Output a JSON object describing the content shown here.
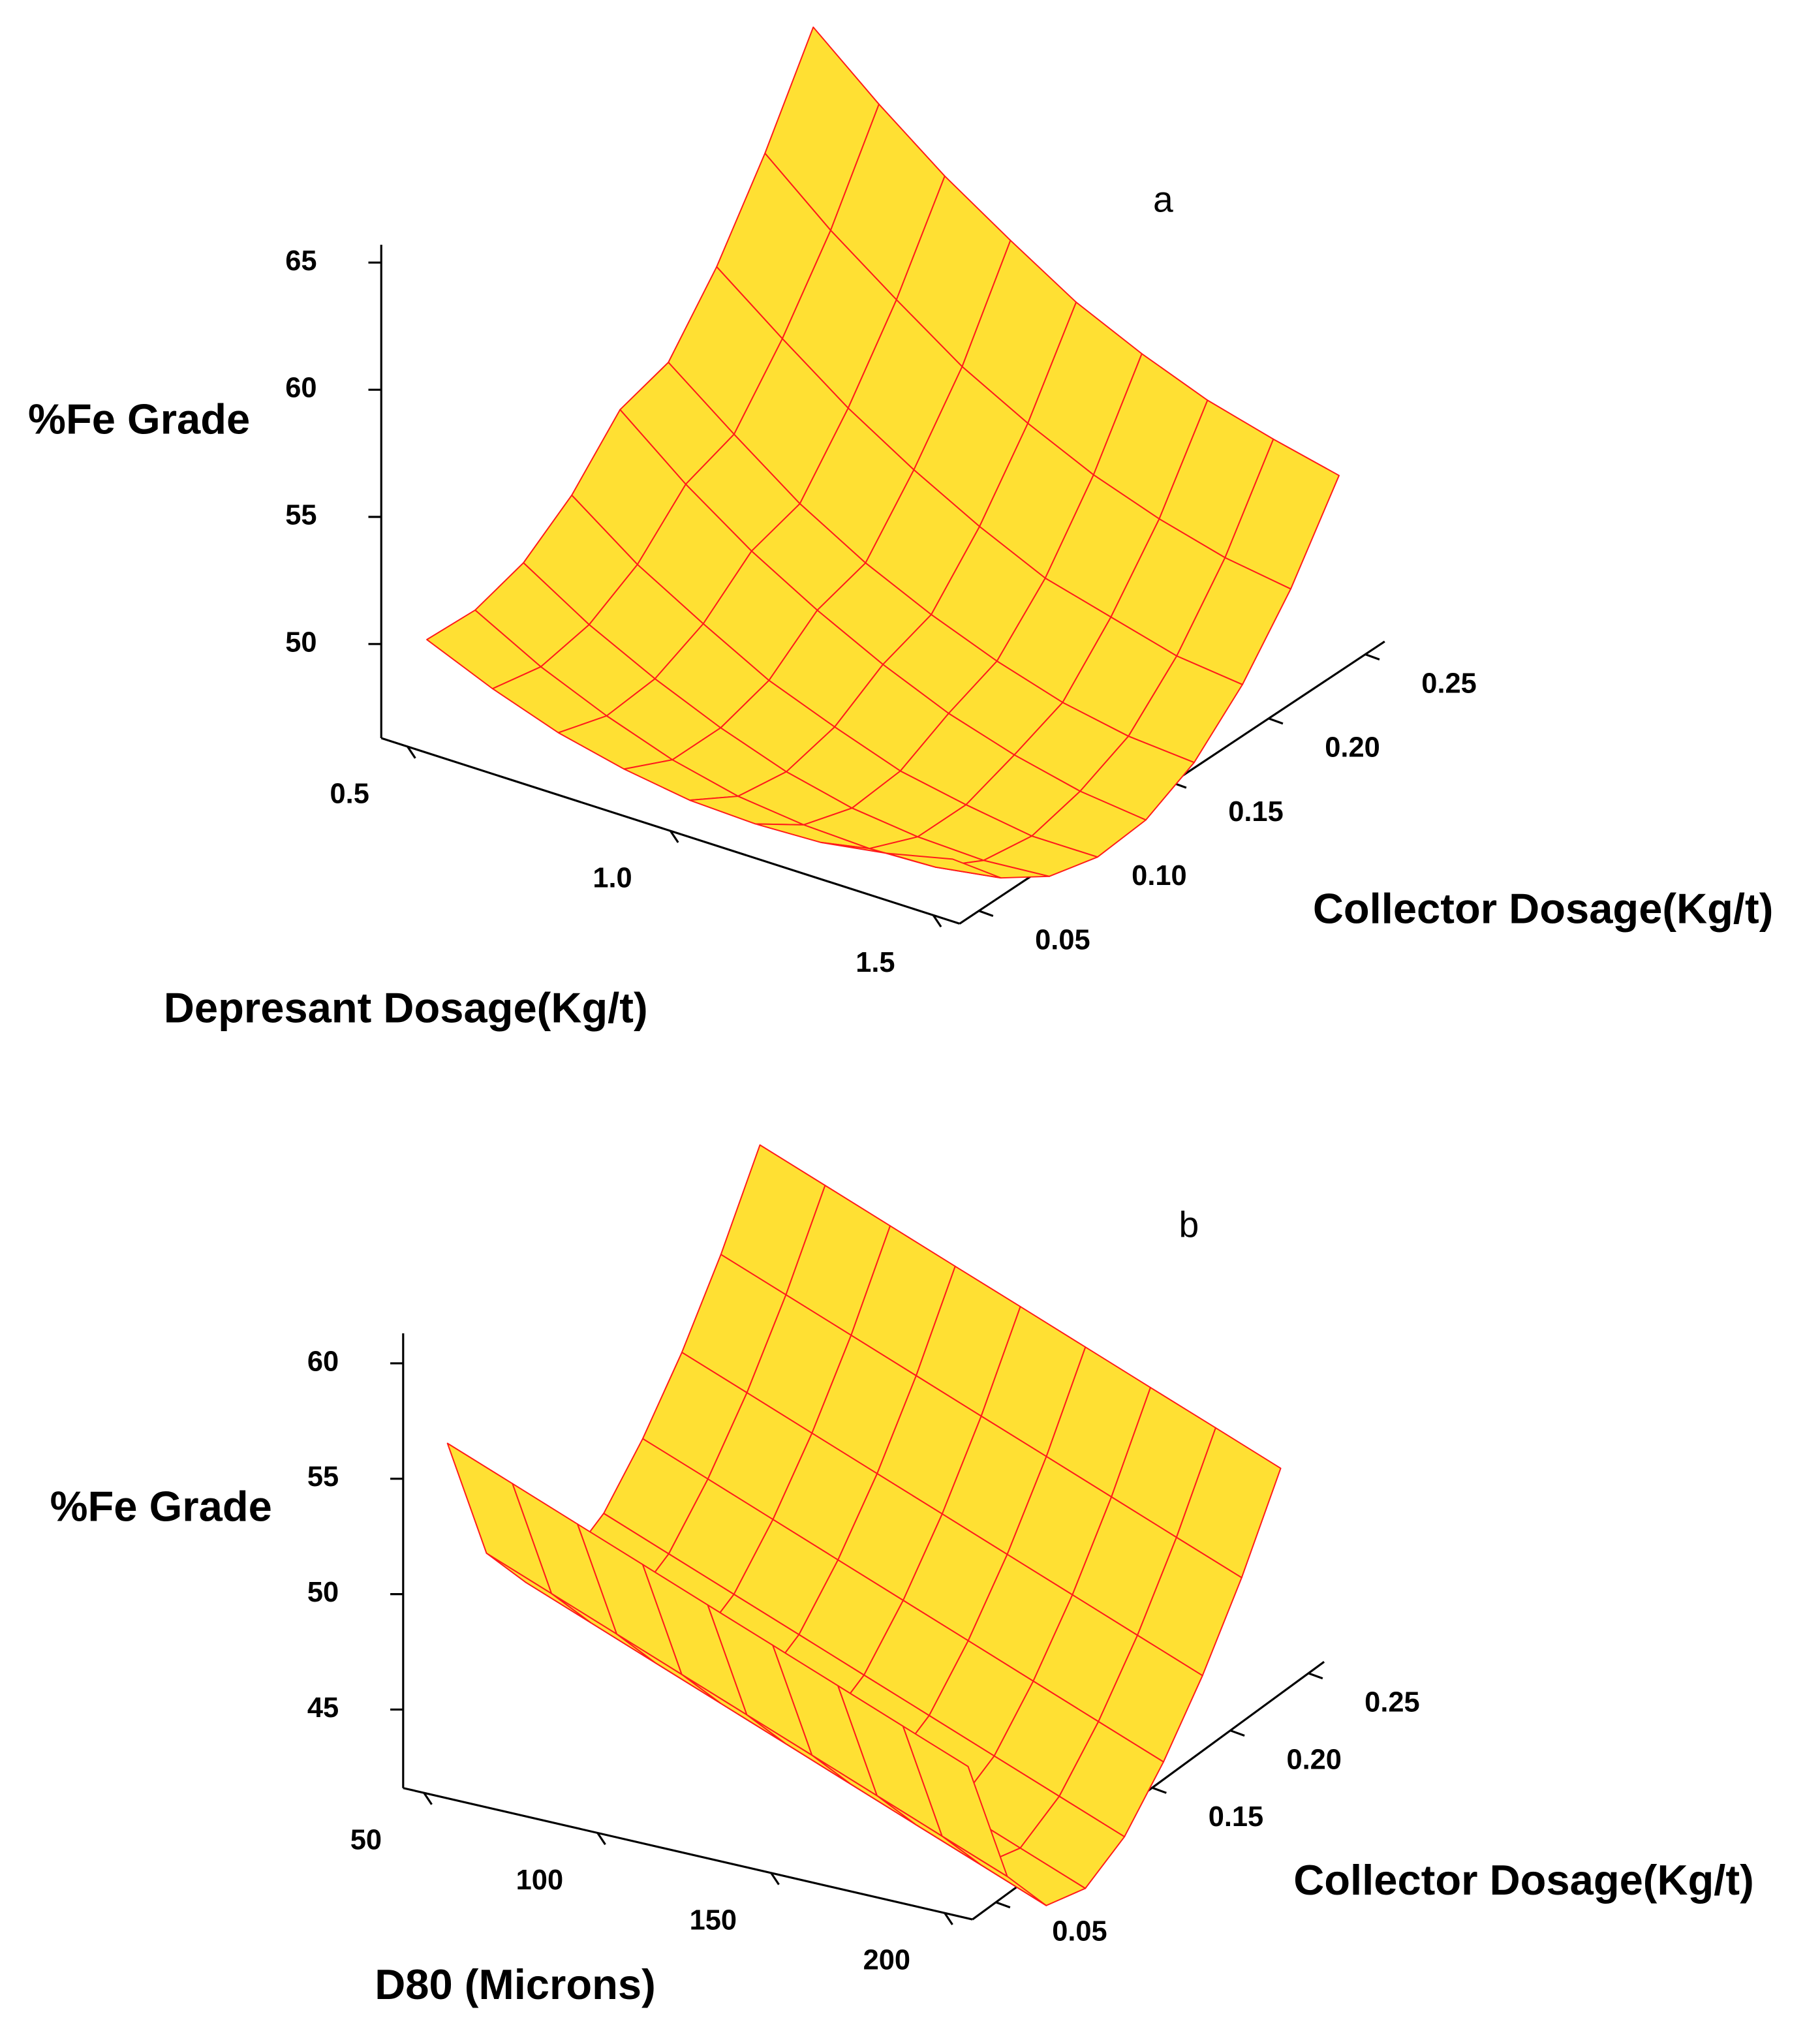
{
  "chart_data": [
    {
      "type": "surface",
      "label": "a",
      "xlabel": "Depresant Dosage(Kg/t)",
      "ylabel": "Collector Dosage(Kg/t)",
      "zlabel": "%Fe Grade",
      "x": [
        0.5,
        0.625,
        0.75,
        0.875,
        1.0,
        1.125,
        1.25,
        1.375,
        1.5
      ],
      "y": [
        0.05,
        0.075,
        0.1,
        0.125,
        0.15,
        0.175,
        0.2,
        0.225,
        0.25
      ],
      "z": [
        [
          50,
          48.9,
          48,
          47.4,
          47,
          46.9,
          47,
          47.4,
          48
        ],
        [
          49.9,
          48.5,
          47.4,
          46.5,
          45.9,
          45.6,
          45.5,
          45.6,
          46.0
        ],
        [
          50.5,
          48.9,
          47.6,
          46.5,
          45.6,
          45.0,
          44.7,
          44.6,
          44.8
        ],
        [
          51.9,
          50.0,
          48.5,
          47.1,
          46.1,
          45.2,
          44.7,
          44.3,
          44.3
        ],
        [
          54,
          51.9,
          50.1,
          48.6,
          47.3,
          46.2,
          45.4,
          44.8,
          44.5
        ],
        [
          54.6,
          52.6,
          50.7,
          49.2,
          48.0,
          47.0,
          46.2,
          45.7,
          45.5
        ],
        [
          57.1,
          55.1,
          53.2,
          51.6,
          50.2,
          49.0,
          48.3,
          47.6,
          47.3
        ],
        [
          60.3,
          58.1,
          56.2,
          54.4,
          53.0,
          51.8,
          50.9,
          50.2,
          49.8
        ],
        [
          64,
          61.8,
          59.8,
          58.1,
          56.5,
          55.3,
          54.3,
          53.6,
          53.0
        ]
      ],
      "xlim": [
        0.45,
        1.55
      ],
      "ylim": [
        0.04,
        0.26
      ],
      "zlim": [
        46.3,
        65.7
      ],
      "xticks": [
        0.5,
        {
          "value": 1,
          "label": "1.0"
        },
        1.5
      ],
      "yticks": [
        0.05,
        {
          "value": 0.1,
          "label": "0.10"
        },
        0.15,
        {
          "value": 0.2,
          "label": "0.20"
        },
        0.25
      ],
      "zticks": [
        50,
        55,
        60,
        65
      ],
      "color": "#ffe033",
      "edge_color": "#ff1a1a"
    },
    {
      "type": "surface",
      "label": "b",
      "xlabel": "D80 (Microns)",
      "ylabel": "Collector Dosage(Kg/t)",
      "zlabel": "%Fe Grade",
      "x": [
        50,
        68.75,
        87.5,
        106.25,
        125,
        143.75,
        162.5,
        181.25,
        200
      ],
      "y": [
        0.05,
        0.075,
        0.1,
        0.125,
        0.15,
        0.175,
        0.2,
        0.225,
        0.25
      ],
      "z": [
        [
          56,
          54.9,
          53.8,
          52.7,
          51.6,
          50.5,
          49.4,
          48.3,
          47.2
        ],
        [
          50,
          48.9,
          47.8,
          46.7,
          45.6,
          44.5,
          43.4,
          42.3,
          41.2
        ],
        [
          47.5,
          46.4,
          45.3,
          44.2,
          43.1,
          42.0,
          40.9,
          39.8,
          38.7
        ],
        [
          47,
          45.9,
          44.8,
          43.7,
          42.6,
          41.5,
          40.4,
          39.3,
          38.2
        ],
        [
          48,
          46.9,
          45.8,
          44.7,
          43.6,
          42.5,
          41.4,
          40.3,
          39.2
        ],
        [
          50,
          48.9,
          47.8,
          46.7,
          45.6,
          44.5,
          43.4,
          42.3,
          41.2
        ],
        [
          52.5,
          51.4,
          50.3,
          49.2,
          48.1,
          47.0,
          45.9,
          44.8,
          43.7
        ],
        [
          55.5,
          54.4,
          53.3,
          52.2,
          51.1,
          50.0,
          48.9,
          47.8,
          46.7
        ],
        [
          59,
          57.9,
          56.8,
          55.7,
          54.6,
          53.5,
          52.4,
          51.3,
          50.2
        ]
      ],
      "xlim": [
        44,
        208
      ],
      "ylim": [
        0.035,
        0.26
      ],
      "zlim": [
        41.6,
        61.3
      ],
      "xticks": [
        50,
        100,
        150,
        200
      ],
      "yticks": [
        0.05,
        0.15,
        {
          "value": 0.2,
          "label": "0.20"
        },
        0.25
      ],
      "zticks": [
        45,
        50,
        55,
        60
      ],
      "color": "#ffe033",
      "edge_color": "#ff1a1a"
    }
  ]
}
